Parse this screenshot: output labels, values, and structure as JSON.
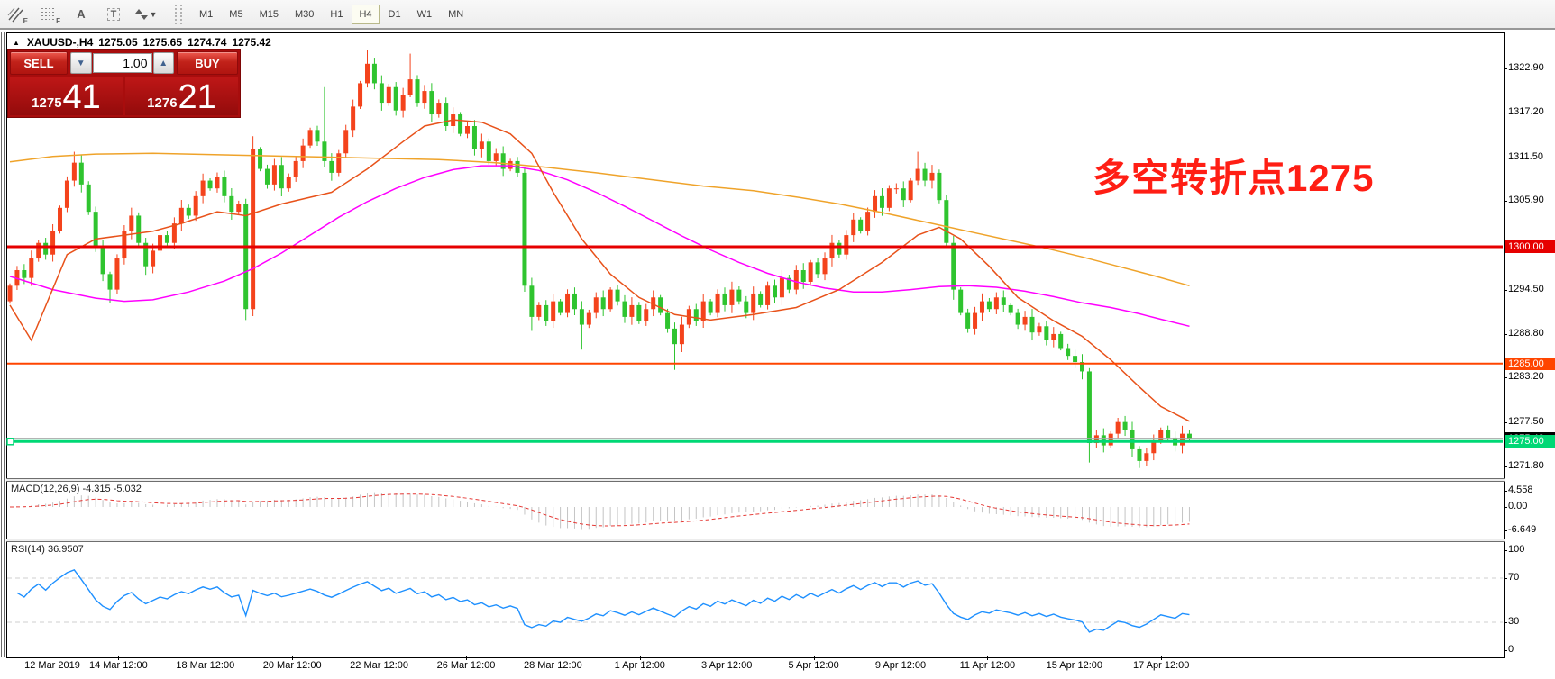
{
  "toolbar": {
    "icons": [
      {
        "name": "channel-tool-icon",
        "letter": "E"
      },
      {
        "name": "grid-tool-icon",
        "letter": "F"
      },
      {
        "name": "text-label-tool-icon",
        "letter": "A"
      },
      {
        "name": "textbox-tool-icon",
        "letter": "T"
      },
      {
        "name": "arrange-tool-icon",
        "letter": ""
      }
    ],
    "timeframes": [
      "M1",
      "M5",
      "M15",
      "M30",
      "H1",
      "H4",
      "D1",
      "W1",
      "MN"
    ],
    "active_timeframe": "H4"
  },
  "chart": {
    "collapse_icon": "▲",
    "title_symbol": "XAUUSD-,H4",
    "ohlc": {
      "o": "1275.05",
      "h": "1275.65",
      "l": "1274.74",
      "c": "1275.42"
    }
  },
  "trade_panel": {
    "sell_label": "SELL",
    "buy_label": "BUY",
    "volume": "1.00",
    "sell_price_main": "1275",
    "sell_price_pips": "41",
    "buy_price_main": "1276",
    "buy_price_pips": "21"
  },
  "annotation": {
    "text": "多空转折点1275",
    "color": "#ff1e14"
  },
  "price_axis": {
    "ticks": [
      "1322.90",
      "1317.20",
      "1311.50",
      "1305.90",
      "1294.50",
      "1288.80",
      "1283.20",
      "1277.50",
      "1271.80"
    ]
  },
  "levels": [
    {
      "label": "1300.00",
      "price": 1300.0,
      "color": "#e60000",
      "thickness": 3
    },
    {
      "label": "1285.00",
      "price": 1285.0,
      "color": "#ff4500",
      "thickness": 2
    },
    {
      "label": "1275.00",
      "price": 1275.0,
      "color": "#00d875",
      "thickness": 3,
      "handle": true
    }
  ],
  "bid": {
    "label": "1275.42",
    "price": 1275.42
  },
  "macd": {
    "label": "MACD(12,26,9) -4.315 -5.032",
    "fast": 12,
    "slow": 26,
    "signal": 9,
    "value": "-4.315",
    "signal_value": "-5.032",
    "axis": [
      "4.558",
      "0.00",
      "-6.649"
    ],
    "axis_values": [
      4.558,
      0.0,
      -6.649
    ]
  },
  "rsi": {
    "label": "RSI(14) 36.9507",
    "period": 14,
    "value": "36.9507",
    "axis": [
      "100",
      "70",
      "30",
      "0"
    ],
    "axis_values": [
      100,
      70,
      30,
      0
    ],
    "dashed_levels": [
      70,
      30
    ]
  },
  "time_axis": {
    "labels": [
      "12 Mar 2019",
      "14 Mar 12:00",
      "18 Mar 12:00",
      "20 Mar 12:00",
      "22 Mar 12:00",
      "26 Mar 12:00",
      "28 Mar 12:00",
      "1 Apr 12:00",
      "3 Apr 12:00",
      "5 Apr 12:00",
      "9 Apr 12:00",
      "11 Apr 12:00",
      "15 Apr 12:00",
      "17 Apr 12:00"
    ]
  },
  "colors": {
    "bull": "#f4431c",
    "bear": "#2fc42f",
    "ma_fast": "#e8521a",
    "ma_mid": "#ff00ff",
    "ma_slow": "#efa32a",
    "macd_hist": "#c4c4c4",
    "macd_signal": "#e53935",
    "rsi_line": "#1e90ff",
    "dashed_level": "#cfcfcf",
    "bid_line": "#a8a8a8"
  },
  "chart_data": {
    "type": "candlestick",
    "symbol": "XAUUSD-",
    "timeframe": "H4",
    "ylim": [
      1270.3,
      1327.4
    ],
    "first_open": 1293.0,
    "closes": [
      1295.0,
      1297.0,
      1296.0,
      1298.5,
      1300.5,
      1299.0,
      1302.0,
      1305.0,
      1308.5,
      1310.8,
      1308.0,
      1304.5,
      1300.0,
      1296.5,
      1294.5,
      1298.5,
      1302.0,
      1304.0,
      1300.5,
      1297.5,
      1299.5,
      1301.5,
      1300.5,
      1303.0,
      1305.0,
      1304.0,
      1306.5,
      1308.5,
      1307.5,
      1309.0,
      1306.5,
      1304.5,
      1305.5,
      1292.0,
      1312.5,
      1310.0,
      1308.0,
      1310.5,
      1307.5,
      1309.0,
      1311.0,
      1313.0,
      1315.0,
      1313.5,
      1311.0,
      1309.5,
      1312.0,
      1315.0,
      1318.0,
      1321.0,
      1323.5,
      1321.0,
      1318.5,
      1320.5,
      1317.5,
      1319.5,
      1321.5,
      1318.5,
      1320.0,
      1317.0,
      1318.5,
      1315.5,
      1317.0,
      1314.5,
      1315.5,
      1312.5,
      1313.5,
      1311.0,
      1312.0,
      1310.0,
      1311.0,
      1309.5,
      1295.0,
      1291.0,
      1292.5,
      1290.5,
      1293.0,
      1291.5,
      1294.0,
      1292.0,
      1290.0,
      1291.5,
      1293.5,
      1292.0,
      1294.5,
      1293.0,
      1291.0,
      1292.5,
      1290.5,
      1292.0,
      1293.5,
      1291.5,
      1289.5,
      1287.5,
      1290.0,
      1292.0,
      1290.5,
      1293.0,
      1291.5,
      1294.0,
      1292.5,
      1294.5,
      1293.0,
      1291.5,
      1294.0,
      1292.5,
      1295.0,
      1293.5,
      1296.0,
      1294.5,
      1297.0,
      1295.5,
      1298.0,
      1296.5,
      1298.5,
      1300.5,
      1299.0,
      1301.5,
      1303.5,
      1302.0,
      1304.5,
      1306.5,
      1305.0,
      1307.5,
      1307.5,
      1306.0,
      1308.5,
      1310.0,
      1308.5,
      1309.5,
      1306.0,
      1300.5,
      1294.5,
      1291.5,
      1289.5,
      1291.5,
      1293.0,
      1292.0,
      1293.5,
      1292.5,
      1291.5,
      1290.0,
      1291.0,
      1289.0,
      1289.8,
      1288.0,
      1288.8,
      1287.0,
      1286.0,
      1285.2,
      1284.0,
      1274.8,
      1275.8,
      1274.5,
      1276.0,
      1277.5,
      1276.5,
      1274.0,
      1272.5,
      1273.5,
      1275.0,
      1276.5,
      1275.5,
      1274.5,
      1276.0,
      1275.4
    ],
    "wick_overrides": {
      "9": {
        "h": 1312.2
      },
      "14": {
        "l": 1292.8
      },
      "19": {
        "l": 1296.4
      },
      "33": {
        "l": 1290.6
      },
      "34": {
        "h": 1314.2
      },
      "44": {
        "h": 1320.5
      },
      "50": {
        "h": 1325.3
      },
      "56": {
        "h": 1324.8
      },
      "73": {
        "l": 1289.2
      },
      "80": {
        "l": 1286.8
      },
      "93": {
        "l": 1284.2
      },
      "127": {
        "h": 1312.2
      },
      "132": {
        "l": 1293.2
      },
      "151": {
        "l": 1272.3
      },
      "158": {
        "l": 1271.6
      }
    },
    "ma_fast_points": [
      [
        0,
        1292.5
      ],
      [
        3,
        1288.0
      ],
      [
        8,
        1299.0
      ],
      [
        12,
        1301.0
      ],
      [
        16,
        1301.5
      ],
      [
        20,
        1302.0
      ],
      [
        24,
        1303.0
      ],
      [
        29,
        1304.5
      ],
      [
        33,
        1304.0
      ],
      [
        38,
        1305.5
      ],
      [
        45,
        1307.0
      ],
      [
        50,
        1310.0
      ],
      [
        55,
        1313.5
      ],
      [
        58,
        1315.5
      ],
      [
        62,
        1316.3
      ],
      [
        66,
        1316.0
      ],
      [
        70,
        1314.5
      ],
      [
        73,
        1312.0
      ],
      [
        76,
        1307.0
      ],
      [
        80,
        1301.0
      ],
      [
        84,
        1296.5
      ],
      [
        88,
        1293.5
      ],
      [
        93,
        1291.3
      ],
      [
        98,
        1290.6
      ],
      [
        104,
        1291.3
      ],
      [
        110,
        1292.2
      ],
      [
        116,
        1294.5
      ],
      [
        122,
        1298.0
      ],
      [
        127,
        1301.5
      ],
      [
        130,
        1302.5
      ],
      [
        133,
        1301.0
      ],
      [
        137,
        1297.5
      ],
      [
        141,
        1293.5
      ],
      [
        146,
        1290.5
      ],
      [
        150,
        1288.5
      ],
      [
        154,
        1285.5
      ],
      [
        158,
        1282.0
      ],
      [
        161,
        1279.5
      ],
      [
        165,
        1277.6
      ]
    ],
    "ma_mid_points": [
      [
        0,
        1296.2
      ],
      [
        6,
        1294.5
      ],
      [
        12,
        1293.4
      ],
      [
        16,
        1293.0
      ],
      [
        20,
        1293.2
      ],
      [
        25,
        1294.2
      ],
      [
        30,
        1295.6
      ],
      [
        34,
        1297.2
      ],
      [
        38,
        1299.2
      ],
      [
        42,
        1301.5
      ],
      [
        46,
        1303.8
      ],
      [
        50,
        1305.8
      ],
      [
        54,
        1307.5
      ],
      [
        58,
        1308.9
      ],
      [
        62,
        1309.9
      ],
      [
        66,
        1310.4
      ],
      [
        70,
        1310.4
      ],
      [
        74,
        1309.8
      ],
      [
        78,
        1308.6
      ],
      [
        82,
        1307.0
      ],
      [
        86,
        1305.2
      ],
      [
        90,
        1303.3
      ],
      [
        94,
        1301.4
      ],
      [
        98,
        1299.6
      ],
      [
        102,
        1298.0
      ],
      [
        106,
        1296.6
      ],
      [
        110,
        1295.5
      ],
      [
        114,
        1294.7
      ],
      [
        118,
        1294.2
      ],
      [
        122,
        1294.2
      ],
      [
        126,
        1294.5
      ],
      [
        130,
        1294.9
      ],
      [
        134,
        1295.0
      ],
      [
        138,
        1294.8
      ],
      [
        142,
        1294.3
      ],
      [
        146,
        1293.6
      ],
      [
        150,
        1292.8
      ],
      [
        154,
        1292.2
      ],
      [
        158,
        1291.4
      ],
      [
        161,
        1290.7
      ],
      [
        165,
        1289.8
      ]
    ],
    "ma_slow_points": [
      [
        0,
        1310.9
      ],
      [
        6,
        1311.6
      ],
      [
        12,
        1311.9
      ],
      [
        20,
        1312.0
      ],
      [
        30,
        1311.8
      ],
      [
        40,
        1311.6
      ],
      [
        50,
        1311.4
      ],
      [
        60,
        1311.2
      ],
      [
        68,
        1310.8
      ],
      [
        75,
        1310.2
      ],
      [
        82,
        1309.5
      ],
      [
        90,
        1308.6
      ],
      [
        97,
        1307.8
      ],
      [
        104,
        1307.2
      ],
      [
        110,
        1306.4
      ],
      [
        116,
        1305.5
      ],
      [
        122,
        1304.4
      ],
      [
        128,
        1303.2
      ],
      [
        134,
        1302.0
      ],
      [
        140,
        1300.8
      ],
      [
        145,
        1299.8
      ],
      [
        150,
        1298.7
      ],
      [
        155,
        1297.5
      ],
      [
        160,
        1296.3
      ],
      [
        165,
        1295.0
      ]
    ]
  }
}
